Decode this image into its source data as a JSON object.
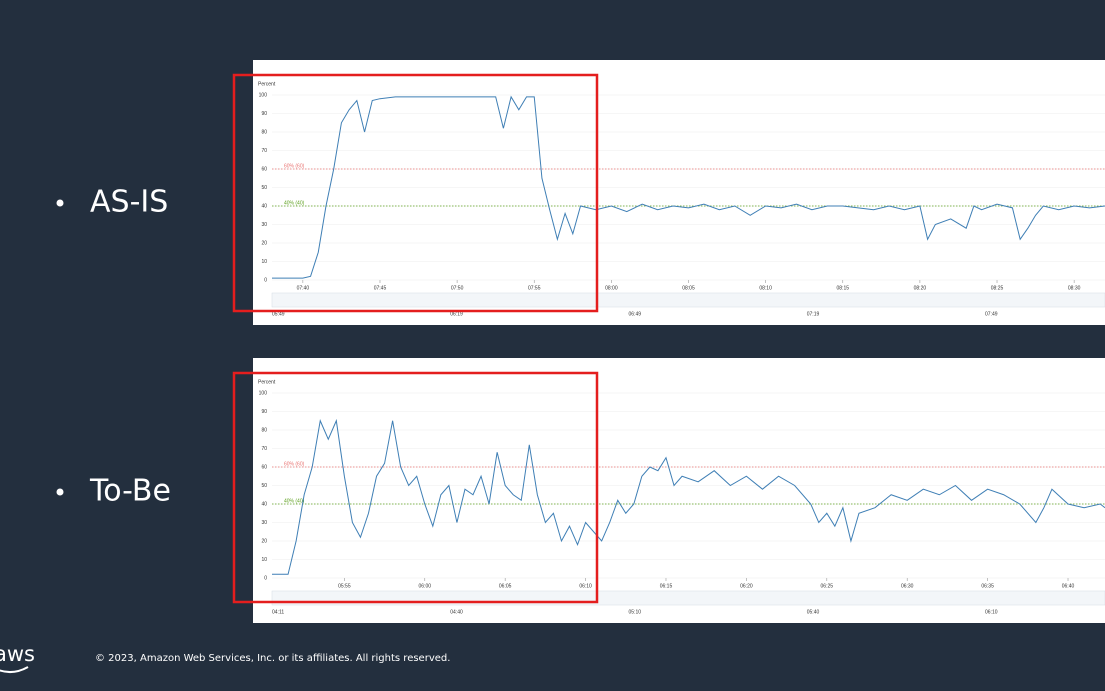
{
  "bullets": [
    "AS-IS",
    "To-Be"
  ],
  "footer": "© 2023, Amazon Web Services, Inc. or its affiliates. All rights reserved.",
  "logo": "aws",
  "chart_data": [
    {
      "type": "line",
      "y_label": "Percent",
      "color": "#3f7fb5",
      "x": [
        458,
        459,
        460,
        460.5,
        461,
        461.5,
        462,
        462.5,
        463,
        463.5,
        464,
        464.5,
        465,
        466,
        467,
        468,
        469,
        470,
        471,
        472,
        472.5,
        473,
        473.5,
        474,
        474.5,
        475,
        475.5,
        476,
        476.5,
        477,
        477.5,
        478,
        479,
        480,
        481,
        482,
        483,
        484,
        485,
        486,
        487,
        488,
        489,
        490,
        491,
        492,
        493,
        494,
        495,
        496,
        497,
        498,
        499,
        500,
        500.5,
        501,
        502,
        503,
        503.5,
        504,
        505,
        506,
        506.5,
        507,
        507.5,
        508,
        509,
        510,
        511,
        512
      ],
      "values": [
        1,
        1,
        1,
        2,
        15,
        40,
        60,
        85,
        92,
        97,
        80,
        97,
        98,
        99,
        99,
        99,
        99,
        99,
        99,
        99,
        99,
        82,
        99,
        92,
        99,
        99,
        55,
        38,
        22,
        36,
        25,
        40,
        38,
        40,
        37,
        41,
        38,
        40,
        39,
        41,
        38,
        40,
        35,
        40,
        39,
        41,
        38,
        40,
        40,
        39,
        38,
        40,
        38,
        40,
        22,
        30,
        33,
        28,
        40,
        38,
        41,
        39,
        22,
        28,
        35,
        40,
        38,
        40,
        39,
        40
      ],
      "xlim": [
        458,
        512
      ],
      "ylim": [
        0,
        100
      ],
      "yticks": [
        0,
        10,
        20,
        30,
        40,
        50,
        60,
        70,
        80,
        90,
        100
      ],
      "xticks": [
        {
          "value": 460,
          "label": "07:40"
        },
        {
          "value": 465,
          "label": "07:45"
        },
        {
          "value": 470,
          "label": "07:50"
        },
        {
          "value": 475,
          "label": "07:55"
        },
        {
          "value": 480,
          "label": "08:00"
        },
        {
          "value": 485,
          "label": "08:05"
        },
        {
          "value": 490,
          "label": "08:10"
        },
        {
          "value": 495,
          "label": "08:15"
        },
        {
          "value": 500,
          "label": "08:20"
        },
        {
          "value": 505,
          "label": "08:25"
        },
        {
          "value": 510,
          "label": "08:30"
        }
      ],
      "thresholds": [
        {
          "label": "60% (60)",
          "value": 60,
          "color": "#e8716f"
        },
        {
          "label": "40% (40)",
          "value": 40,
          "color": "#5a9e1a"
        }
      ],
      "navigator_labels": [
        "05:49",
        "06:19",
        "06:49",
        "07:19",
        "07:49"
      ]
    },
    {
      "type": "line",
      "y_label": "Percent",
      "color": "#3f7fb5",
      "x": [
        350.5,
        351.5,
        352,
        352.5,
        353,
        353.5,
        354,
        354.5,
        355,
        355.5,
        356,
        356.5,
        357,
        357.5,
        358,
        358.5,
        359,
        359.5,
        360,
        360.5,
        361,
        361.5,
        362,
        362.5,
        363,
        363.5,
        364,
        364.5,
        365,
        365.5,
        366,
        366.5,
        367,
        367.5,
        368,
        368.5,
        369,
        369.5,
        370,
        370.5,
        371,
        371.5,
        372,
        372.5,
        373,
        373.5,
        374,
        374.5,
        375,
        375.5,
        376,
        377,
        378,
        379,
        380,
        381,
        382,
        383,
        384,
        384.5,
        385,
        385.5,
        386,
        386.5,
        387,
        388,
        389,
        390,
        391,
        392,
        393,
        394,
        395,
        396,
        397,
        398,
        398.5,
        399,
        400,
        401,
        402,
        402.3
      ],
      "values": [
        2,
        2,
        20,
        45,
        60,
        85,
        75,
        85,
        55,
        30,
        22,
        35,
        55,
        62,
        85,
        60,
        50,
        55,
        40,
        28,
        45,
        50,
        30,
        48,
        45,
        55,
        40,
        68,
        50,
        45,
        42,
        72,
        45,
        30,
        35,
        20,
        28,
        18,
        30,
        25,
        20,
        30,
        42,
        35,
        40,
        55,
        60,
        58,
        65,
        50,
        55,
        52,
        58,
        50,
        55,
        48,
        55,
        50,
        40,
        30,
        35,
        28,
        38,
        20,
        35,
        38,
        45,
        42,
        48,
        45,
        50,
        42,
        48,
        45,
        40,
        30,
        38,
        48,
        40,
        38,
        40,
        38
      ],
      "xlim": [
        350.5,
        402.3
      ],
      "ylim": [
        0,
        100
      ],
      "yticks": [
        0,
        10,
        20,
        30,
        40,
        50,
        60,
        70,
        80,
        90,
        100
      ],
      "xticks": [
        {
          "value": 355,
          "label": "05:55"
        },
        {
          "value": 360,
          "label": "06:00"
        },
        {
          "value": 365,
          "label": "06:05"
        },
        {
          "value": 370,
          "label": "06:10"
        },
        {
          "value": 375,
          "label": "06:15"
        },
        {
          "value": 380,
          "label": "06:20"
        },
        {
          "value": 385,
          "label": "06:25"
        },
        {
          "value": 390,
          "label": "06:30"
        },
        {
          "value": 395,
          "label": "06:35"
        },
        {
          "value": 400,
          "label": "06:40"
        }
      ],
      "thresholds": [
        {
          "label": "60% (60)",
          "value": 60,
          "color": "#e8716f"
        },
        {
          "label": "40% (40)",
          "value": 40,
          "color": "#5a9e1a"
        }
      ],
      "navigator_labels": [
        "04:11",
        "04:40",
        "05:10",
        "05:40",
        "06:10"
      ]
    }
  ]
}
